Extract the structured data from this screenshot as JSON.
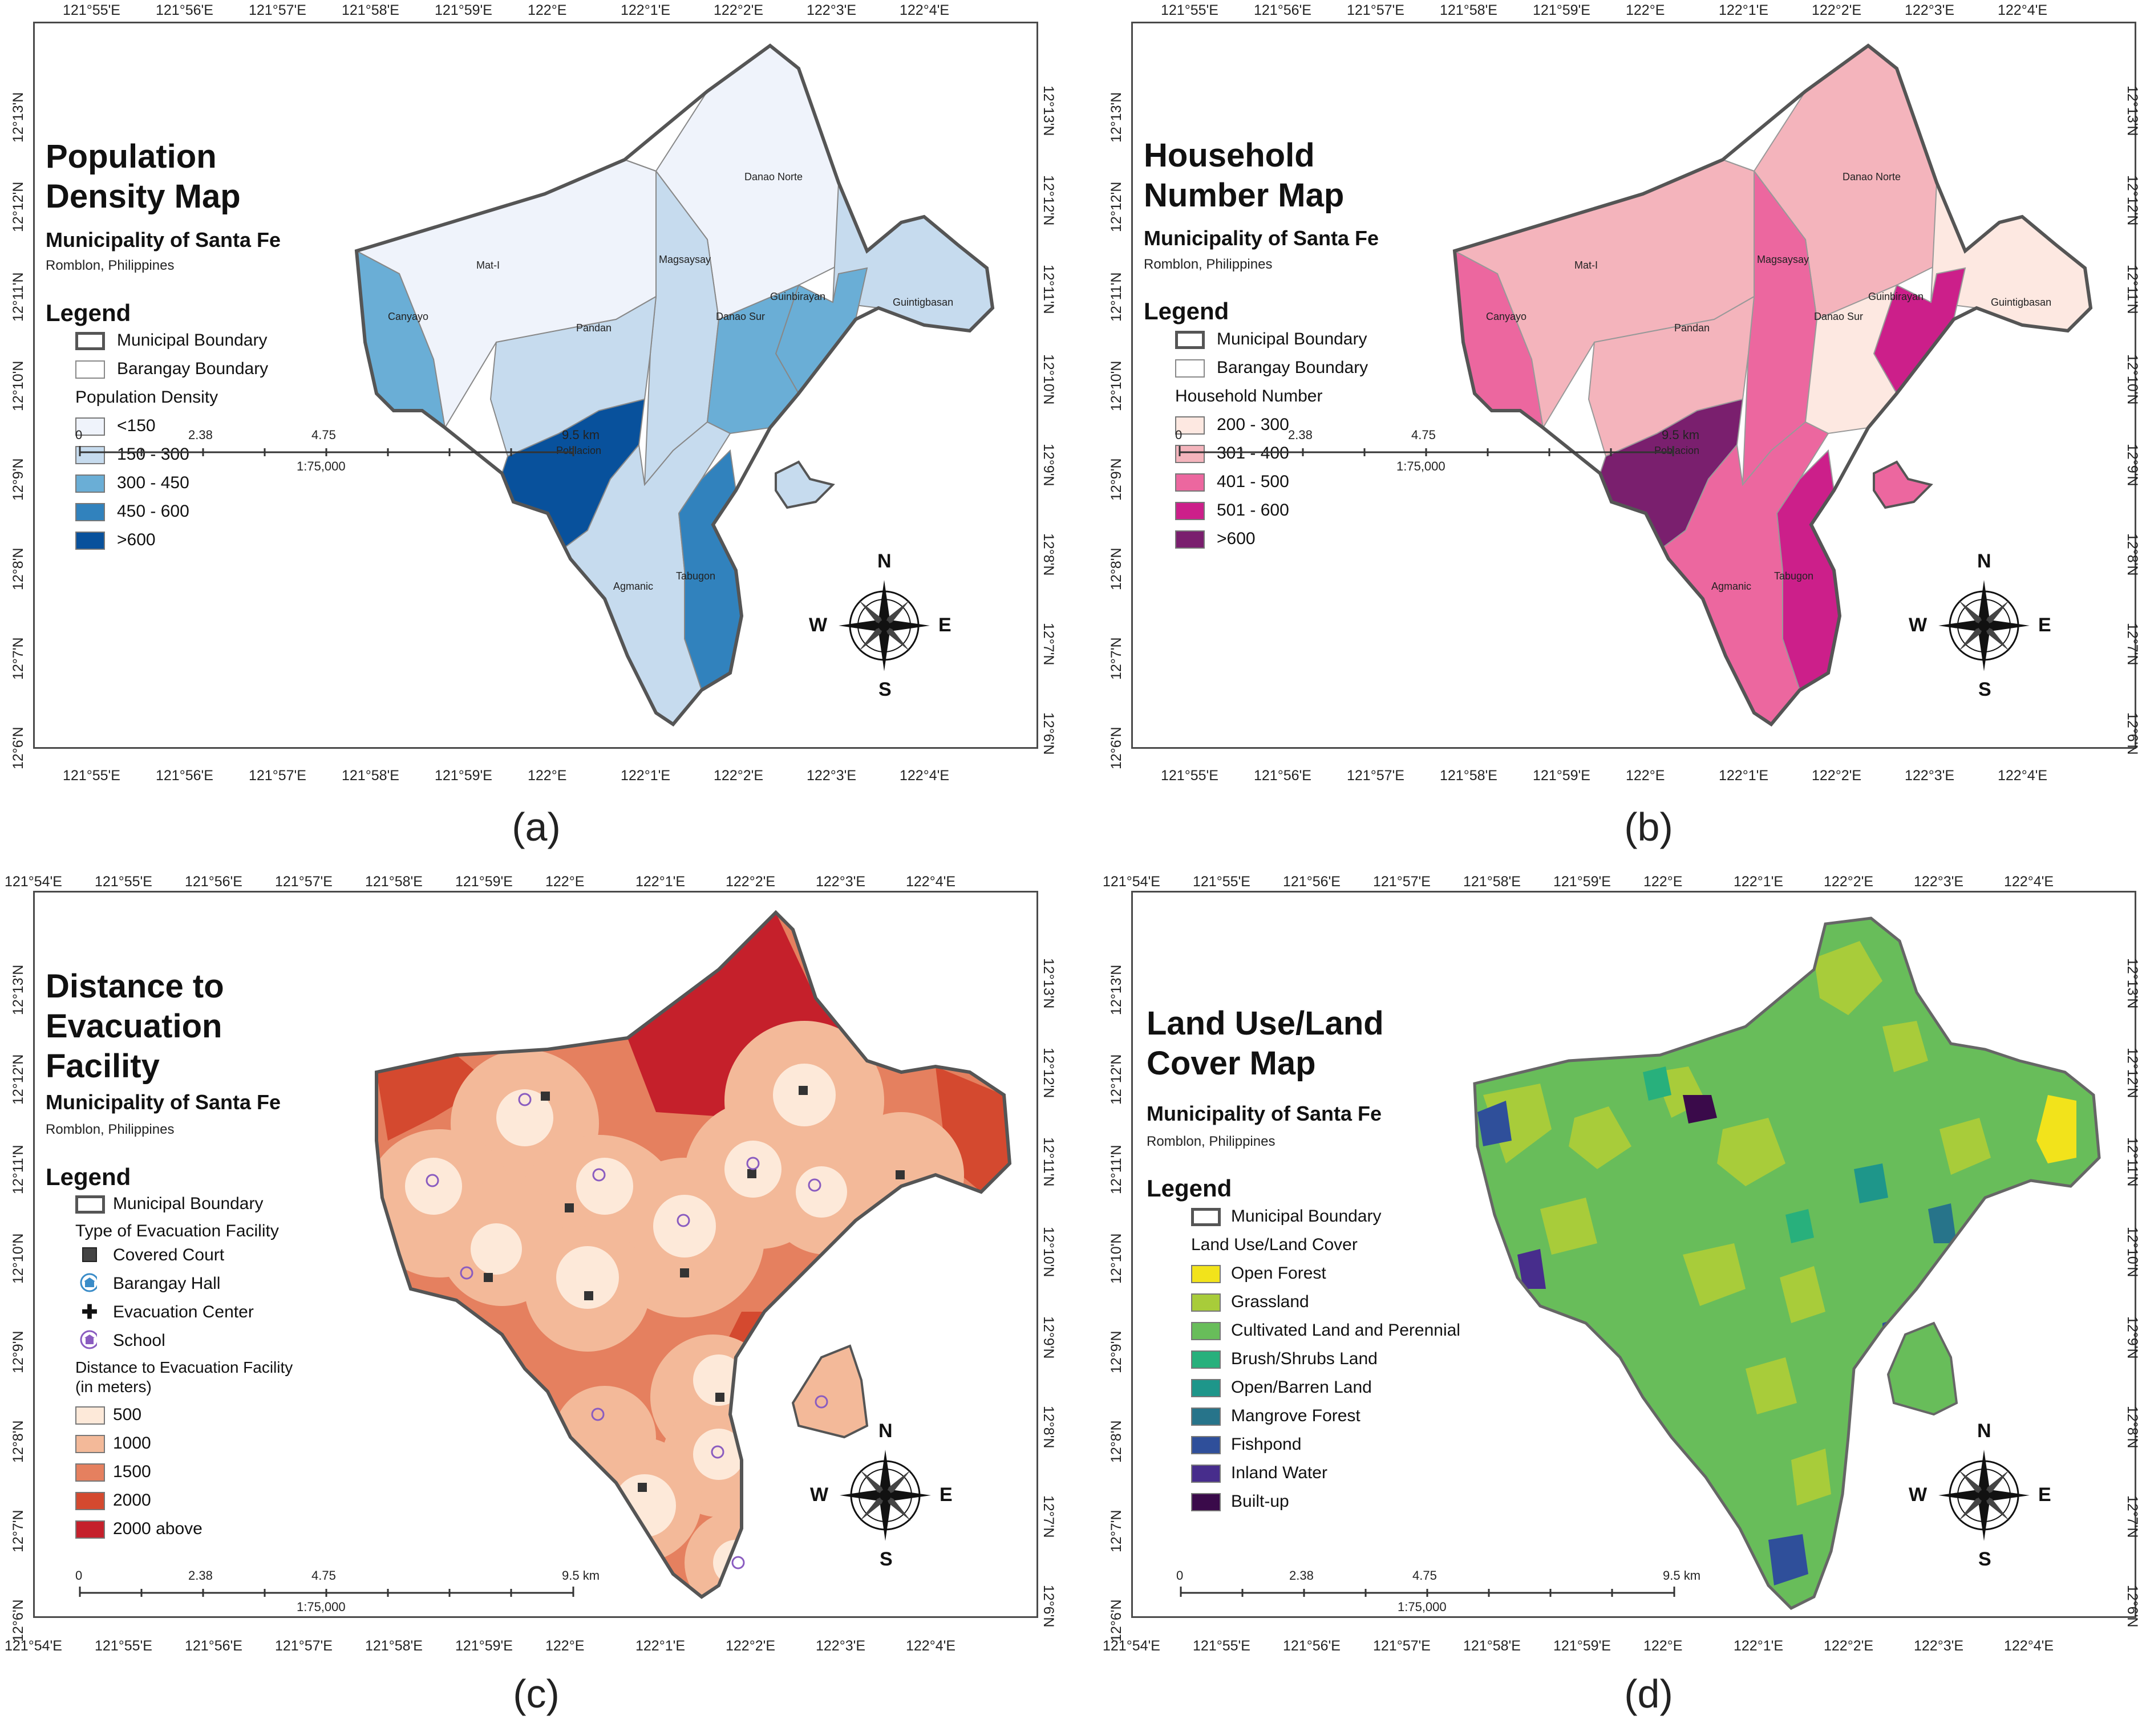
{
  "axes": {
    "top_lon_ab": [
      "121°55'E",
      "121°56'E",
      "121°57'E",
      "121°58'E",
      "121°59'E",
      "122°E",
      "122°1'E",
      "122°2'E",
      "122°3'E",
      "122°4'E"
    ],
    "top_lon_cd": [
      "121°54'E",
      "121°55'E",
      "121°56'E",
      "121°57'E",
      "121°58'E",
      "121°59'E",
      "122°E",
      "122°1'E",
      "122°2'E",
      "122°3'E",
      "122°4'E"
    ],
    "lat": [
      "12°13'N",
      "12°12'N",
      "12°11'N",
      "12°10'N",
      "12°9'N",
      "12°8'N",
      "12°7'N",
      "12°6'N"
    ]
  },
  "common": {
    "subtitle": "Municipality of Santa Fe",
    "subtitle2": "Romblon, Philippines",
    "legend_title": "Legend",
    "municipal_boundary": "Municipal Boundary",
    "barangay_boundary": "Barangay Boundary",
    "scale_labels": [
      "0",
      "2.38",
      "4.75",
      "9.5 km"
    ],
    "scale_ratio": "1:75,000",
    "compass": {
      "n": "N",
      "s": "S",
      "e": "E",
      "w": "W"
    }
  },
  "barangays": [
    "Danao Norte",
    "Mat-I",
    "Magsaysay",
    "Guintigbasan",
    "Guinbirayan",
    "Canyayo",
    "Pandan",
    "Danao Sur",
    "Poblacion",
    "Agmanic",
    "Tabugon"
  ],
  "panel_a": {
    "caption": "(a)",
    "title_line1": "Population",
    "title_line2": "Density Map",
    "legend_heading": "Population Density",
    "classes": [
      {
        "label": "<150",
        "color": "#eff3fb"
      },
      {
        "label": "150 - 300",
        "color": "#c6dbee"
      },
      {
        "label": "300 - 450",
        "color": "#6aaed6"
      },
      {
        "label": "450 - 600",
        "color": "#3182bd"
      },
      {
        "label": ">600",
        "color": "#08519c"
      }
    ]
  },
  "panel_b": {
    "caption": "(b)",
    "title_line1": "Household",
    "title_line2": "Number Map",
    "legend_heading": "Household Number",
    "classes": [
      {
        "label": "200 - 300",
        "color": "#fde8e1"
      },
      {
        "label": "301 - 400",
        "color": "#f4b4bc"
      },
      {
        "label": "401 - 500",
        "color": "#ec679f"
      },
      {
        "label": "501 - 600",
        "color": "#cc1f8a"
      },
      {
        "label": ">600",
        "color": "#7a1f6e"
      }
    ]
  },
  "panel_c": {
    "caption": "(c)",
    "title_line1": "Distance to",
    "title_line2": "Evacuation",
    "title_line3": "Facility",
    "facility_heading": "Type of Evacuation Facility",
    "facilities": [
      {
        "label": "Covered Court",
        "icon": "square-icon"
      },
      {
        "label": "Barangay Hall",
        "icon": "building-icon"
      },
      {
        "label": "Evacuation Center",
        "icon": "cross-icon"
      },
      {
        "label": "School",
        "icon": "school-icon"
      }
    ],
    "distance_heading_1": "Distance to Evacuation Facility",
    "distance_heading_2": "(in meters)",
    "classes": [
      {
        "label": "500",
        "color": "#fde9d9"
      },
      {
        "label": "1000",
        "color": "#f3b999"
      },
      {
        "label": "1500",
        "color": "#e5805f"
      },
      {
        "label": "2000",
        "color": "#d4492f"
      },
      {
        "label": "2000 above",
        "color": "#c5202b"
      }
    ]
  },
  "panel_d": {
    "caption": "(d)",
    "title_line1": "Land Use/Land",
    "title_line2": "Cover Map",
    "legend_heading": "Land Use/Land Cover",
    "classes": [
      {
        "label": "Open Forest",
        "color": "#f2e31b"
      },
      {
        "label": "Grassland",
        "color": "#a8cc3a"
      },
      {
        "label": "Cultivated Land and Perennial",
        "color": "#68bd5a"
      },
      {
        "label": "Brush/Shrubs Land",
        "color": "#28b07c"
      },
      {
        "label": "Open/Barren Land",
        "color": "#1e968a"
      },
      {
        "label": "Mangrove Forest",
        "color": "#27748a"
      },
      {
        "label": "Fishpond",
        "color": "#2f4f9a"
      },
      {
        "label": "Inland Water",
        "color": "#472d8c"
      },
      {
        "label": "Built-up",
        "color": "#3a0a4a"
      }
    ]
  }
}
